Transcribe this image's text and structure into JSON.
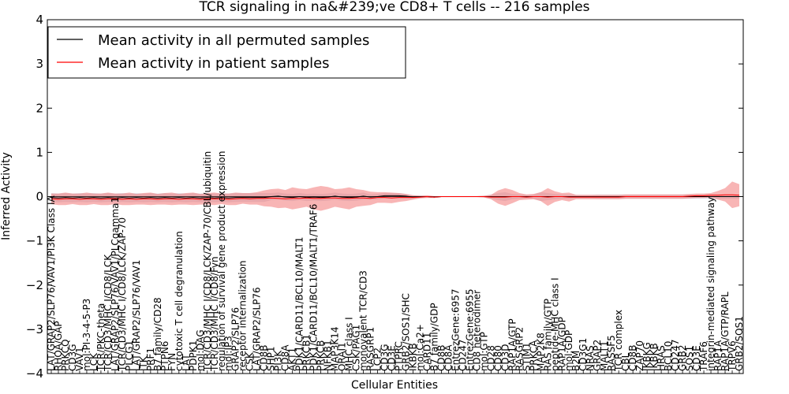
{
  "chart_data": {
    "type": "line",
    "title": "TCR signaling in na&#239;ve CD8+ T cells -- 216 samples",
    "xlabel": "Cellular Entities",
    "ylabel": "Inferred Activity",
    "ylim": [
      -4,
      4
    ],
    "yticks": [
      -4,
      -3,
      -2,
      -1,
      0,
      1,
      2,
      3,
      4
    ],
    "legend": {
      "location": "top-left"
    },
    "categories": [
      "LAT/GRAP2/SLP76/VAV1/PI3K Class IA",
      "RHOA/GAP",
      "PRKCQ",
      "CD3G",
      "VAV1",
      "mol:PI-3-4-5-P3",
      "LCK",
      "TCR/PKC-theta",
      "TCR/CD3/MHC I/CD8/LCK",
      "LAT/GRAP2/SLP76/VAV1/PLCgamma1",
      "TCR/CD3/MHC I/CD8/LCK/ZAP-70",
      "PLCG1",
      "LAT/GRAP2/SLP76/VAV1",
      "ITK",
      "PRF1",
      "B7 family/CD28",
      "PTPN6",
      "FYN",
      "cytotoxic T cell degranulation",
      "LAT",
      "PDPK1",
      "mol:DAG",
      "TCR/CD3/MHC I/CD8/LCK/ZAP-70/CBL/ubiquitin",
      "TCR/CD3/MHC I/CD8/Fyn",
      "regulation of survival gene product expression",
      "mol:IP3",
      "GRAP2/SLP76",
      "receptor internalization",
      "CSK",
      "LAT/GRAP2/SLP76",
      "CD8B",
      "SHP1",
      "PI3K",
      "CD8A",
      "AKT1",
      "PDK1/CARD11/BCL10/MALT1",
      "PRKCB1",
      "PDK1/CARD11/BCL10/MALT1/TRAF6",
      "PRKCB",
      "NFKB1",
      "MAP3K14",
      "ORAI1",
      "MHC class I",
      "CSK/PAG1",
      "monovalent TCR/CD3",
      "RASGRP1",
      "LCP2",
      "CD3G",
      "CD3E",
      "PTPRC",
      "GRB2/SOS1/SHC",
      "IKBKB",
      "mol:Ca2+",
      "CARD11",
      "B7 family/GDP",
      "CD8B",
      "CD8A",
      "EntrezGene:6957",
      "CD247",
      "EntrezGene:6955",
      "CD8 heterodimer",
      "mol:GTP",
      "CD28",
      "CD80",
      "CD3D",
      "RAP1A/GTP",
      "RASGRP2",
      "STIM1",
      "PRKCA",
      "MAP2K8",
      "RAS family/GTP",
      "peptide-MHC class I",
      "RAP1A/GDP",
      "mol:GDP",
      "B2M",
      "CD3G1",
      "NRAS",
      "GRAP2",
      "MALT1",
      "RASSF5",
      "TCR complex",
      "CBL",
      "CD8B",
      "ZAP70",
      "IKBKG",
      "IKBKB",
      "HRAS",
      "BCL10",
      "CD247",
      "GRB2",
      "SOS1",
      "CD3E",
      "TRAF6",
      "integrin-mediated signaling pathway",
      "RAP1A",
      "RAP1A/GTP/RAPL",
      "TRPV6",
      "GRB2/SOS1"
    ],
    "series": [
      {
        "name": "Mean activity in all permuted samples",
        "color": "#000000",
        "values": [
          -0.02,
          -0.03,
          -0.02,
          -0.03,
          -0.02,
          -0.03,
          -0.02,
          -0.03,
          -0.02,
          -0.03,
          -0.02,
          -0.03,
          -0.02,
          -0.03,
          -0.02,
          -0.03,
          -0.02,
          -0.03,
          -0.02,
          -0.03,
          -0.02,
          -0.03,
          -0.02,
          -0.03,
          -0.02,
          -0.03,
          -0.02,
          -0.02,
          -0.02,
          -0.02,
          -0.02,
          0.0,
          0.01,
          -0.01,
          -0.02,
          0.0,
          -0.02,
          -0.01,
          -0.02,
          -0.01,
          0.01,
          -0.01,
          -0.02,
          -0.01,
          0.01,
          -0.01,
          0.0,
          0.02,
          0.02,
          0.02,
          0.01,
          -0.01,
          0.0,
          0.0,
          -0.01,
          0.0,
          0.0,
          0.0,
          0.0,
          0.0,
          0.0,
          0.0,
          0.0,
          0.0,
          0.0,
          0.0,
          0.0,
          0.0,
          0.0,
          0.0,
          0.0,
          0.0,
          0.0,
          0.0,
          0.0,
          0.0,
          0.0,
          0.0,
          0.0,
          0.0,
          0.0,
          0.0,
          0.0,
          0.0,
          0.0,
          0.0,
          0.0,
          0.0,
          0.0,
          0.0,
          0.0,
          0.0,
          0.0,
          0.0,
          0.0,
          0.0,
          0.0,
          0.0
        ],
        "spread": [
          0.1,
          0.1,
          0.1,
          0.1,
          0.1,
          0.1,
          0.1,
          0.1,
          0.1,
          0.1,
          0.1,
          0.1,
          0.1,
          0.1,
          0.1,
          0.1,
          0.1,
          0.1,
          0.1,
          0.1,
          0.1,
          0.1,
          0.1,
          0.1,
          0.1,
          0.1,
          0.1,
          0.1,
          0.1,
          0.1,
          0.1,
          0.08,
          0.08,
          0.08,
          0.08,
          0.08,
          0.08,
          0.08,
          0.08,
          0.08,
          0.08,
          0.08,
          0.08,
          0.08,
          0.08,
          0.06,
          0.06,
          0.06,
          0.06,
          0.06,
          0.05,
          0.04,
          0.03,
          0.02,
          0.02,
          0.01,
          0.01,
          0.01,
          0.01,
          0.01,
          0.01,
          0.02,
          0.05,
          0.08,
          0.1,
          0.06,
          0.05,
          0.04,
          0.05,
          0.1,
          0.08,
          0.06,
          0.05,
          0.05,
          0.04,
          0.04,
          0.04,
          0.05,
          0.05,
          0.05,
          0.05,
          0.05,
          0.05,
          0.05,
          0.05,
          0.05,
          0.05,
          0.05,
          0.05,
          0.05,
          0.05,
          0.05,
          0.05,
          0.05,
          0.05,
          0.05,
          0.05,
          0.05
        ]
      },
      {
        "name": "Mean activity in patient samples",
        "color": "#ff0000",
        "values": [
          -0.05,
          -0.06,
          -0.05,
          -0.05,
          -0.06,
          -0.05,
          -0.05,
          -0.06,
          -0.05,
          -0.05,
          -0.06,
          -0.05,
          -0.06,
          -0.05,
          -0.05,
          -0.06,
          -0.05,
          -0.05,
          -0.06,
          -0.05,
          -0.05,
          -0.06,
          -0.05,
          -0.05,
          -0.05,
          -0.06,
          -0.05,
          -0.04,
          -0.05,
          -0.04,
          -0.04,
          -0.03,
          -0.04,
          -0.05,
          -0.04,
          -0.04,
          -0.03,
          -0.04,
          -0.04,
          -0.03,
          -0.03,
          -0.04,
          -0.04,
          -0.03,
          -0.03,
          -0.04,
          -0.02,
          -0.02,
          -0.03,
          -0.02,
          -0.02,
          -0.02,
          -0.01,
          0.0,
          -0.01,
          0.0,
          0.0,
          0.0,
          0.0,
          0.0,
          0.0,
          0.0,
          -0.01,
          -0.01,
          -0.01,
          0.0,
          0.0,
          -0.01,
          0.0,
          0.0,
          -0.01,
          0.0,
          0.0,
          -0.01,
          -0.01,
          -0.01,
          -0.01,
          -0.01,
          -0.01,
          -0.01,
          -0.01,
          0.0,
          0.0,
          0.0,
          0.0,
          0.0,
          0.0,
          0.0,
          0.0,
          0.0,
          0.01,
          0.02,
          0.02,
          0.03,
          0.03,
          0.04,
          0.04,
          0.03
        ],
        "spread": [
          0.12,
          0.13,
          0.14,
          0.12,
          0.13,
          0.14,
          0.12,
          0.13,
          0.14,
          0.12,
          0.13,
          0.14,
          0.12,
          0.13,
          0.14,
          0.12,
          0.13,
          0.14,
          0.12,
          0.13,
          0.14,
          0.12,
          0.13,
          0.14,
          0.12,
          0.13,
          0.14,
          0.12,
          0.13,
          0.14,
          0.18,
          0.2,
          0.22,
          0.2,
          0.25,
          0.22,
          0.2,
          0.25,
          0.28,
          0.25,
          0.2,
          0.22,
          0.25,
          0.2,
          0.18,
          0.15,
          0.12,
          0.12,
          0.12,
          0.1,
          0.08,
          0.05,
          0.03,
          0.03,
          0.02,
          0.01,
          0.01,
          0.01,
          0.01,
          0.01,
          0.01,
          0.02,
          0.05,
          0.15,
          0.2,
          0.15,
          0.08,
          0.06,
          0.06,
          0.1,
          0.2,
          0.12,
          0.08,
          0.1,
          0.05,
          0.05,
          0.05,
          0.05,
          0.05,
          0.05,
          0.05,
          0.05,
          0.05,
          0.05,
          0.05,
          0.05,
          0.05,
          0.05,
          0.05,
          0.05,
          0.05,
          0.05,
          0.05,
          0.05,
          0.1,
          0.15,
          0.3,
          0.25
        ]
      }
    ]
  }
}
